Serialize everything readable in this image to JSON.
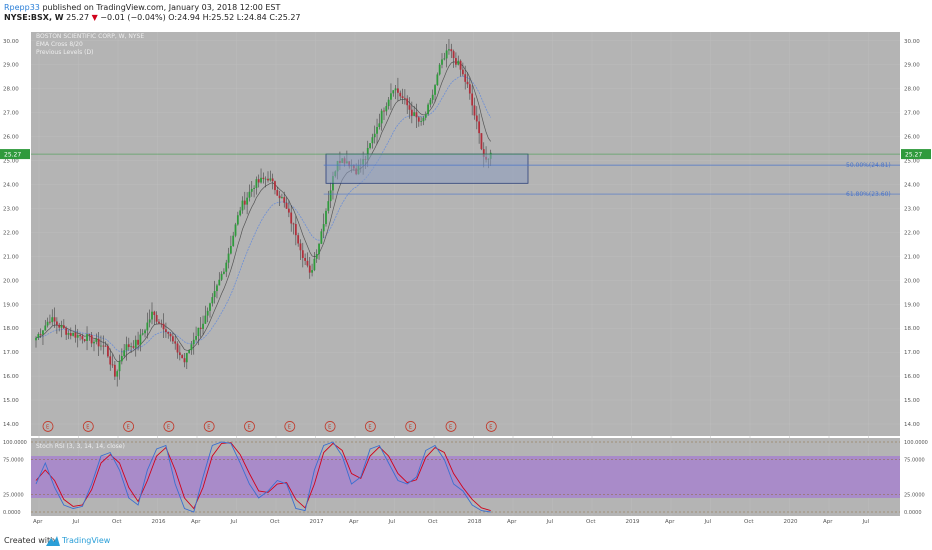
{
  "header": {
    "user": "Rpepp33",
    "published": "published on TradingView.com, January 03, 2018 12:00 EST",
    "symbol": "NYSE:BSX, W",
    "last": "25.27",
    "change_arrow": "▼",
    "change": "−0.01 (−0.04%)",
    "ohlc": "O:24.94 H:25.52 L:24.84 C:25.27"
  },
  "footer": {
    "created_with": "Created with",
    "brand": "TradingView"
  },
  "colors": {
    "plot_bg": "#b4b4b4",
    "up": "#2f9a3c",
    "down": "#b0303c",
    "rsi_band": "#a98bc9",
    "zone": "#8c9cc0",
    "fib": "#4a74c9",
    "price_label": "#2f9a3c"
  },
  "chart_data": {
    "type": "candlestick",
    "title": "BOSTON SCIENTIFIC CORP, W, NYSE",
    "indicators": [
      "EMA Cross 8/20",
      "Previous Levels (D)"
    ],
    "y_ticks": [
      "30.00",
      "29.00",
      "28.00",
      "27.00",
      "26.00",
      "25.00",
      "24.00",
      "23.00",
      "22.00",
      "21.00",
      "20.00",
      "19.00",
      "18.00",
      "17.00",
      "16.00",
      "15.00",
      "14.00"
    ],
    "ylim": [
      13.5,
      30.2
    ],
    "last_price_label": "25.27",
    "x_ticks": [
      "Apr",
      "Jul",
      "Oct",
      "2016",
      "Apr",
      "Jul",
      "Oct",
      "2017",
      "Apr",
      "Jul",
      "Oct",
      "2018",
      "Apr",
      "Jul",
      "Oct",
      "2019",
      "Apr",
      "Jul",
      "Oct",
      "2020",
      "Apr",
      "Jul"
    ],
    "price_path": [
      [
        0,
        17.6
      ],
      [
        6,
        18.4
      ],
      [
        14,
        17.8
      ],
      [
        22,
        17.6
      ],
      [
        30,
        17.2
      ],
      [
        34,
        16.0
      ],
      [
        38,
        17.2
      ],
      [
        44,
        17.4
      ],
      [
        50,
        18.6
      ],
      [
        56,
        18.0
      ],
      [
        60,
        17.2
      ],
      [
        64,
        16.6
      ],
      [
        68,
        17.6
      ],
      [
        74,
        18.6
      ],
      [
        82,
        20.8
      ],
      [
        88,
        23.0
      ],
      [
        94,
        24.0
      ],
      [
        100,
        24.3
      ],
      [
        106,
        23.4
      ],
      [
        112,
        22.0
      ],
      [
        116,
        20.8
      ],
      [
        118,
        20.2
      ],
      [
        122,
        21.6
      ],
      [
        126,
        23.4
      ],
      [
        130,
        25.1
      ],
      [
        134,
        25.0
      ],
      [
        138,
        24.6
      ],
      [
        142,
        25.1
      ],
      [
        146,
        26.2
      ],
      [
        150,
        27.2
      ],
      [
        154,
        28.1
      ],
      [
        158,
        27.6
      ],
      [
        162,
        27.0
      ],
      [
        166,
        26.5
      ],
      [
        170,
        27.4
      ],
      [
        174,
        28.9
      ],
      [
        178,
        29.6
      ],
      [
        182,
        29.0
      ],
      [
        186,
        28.1
      ],
      [
        190,
        26.5
      ],
      [
        193,
        25.2
      ],
      [
        195,
        24.9
      ],
      [
        196,
        25.27
      ]
    ],
    "zone": {
      "low": 24.05,
      "high": 25.27
    },
    "fib_levels": [
      {
        "label": "50.00%(24.81)",
        "value": 24.81
      },
      {
        "label": "61.80%(23.60)",
        "value": 23.6
      }
    ],
    "earnings_marker": "E",
    "earnings_count": 12,
    "rsi": {
      "label": "Stoch RSI (3, 3, 14, 14, close)",
      "y_ticks": [
        "100.0000",
        "75.0000",
        "25.0000",
        "0.0000"
      ],
      "levels": [
        100,
        75,
        25,
        0
      ],
      "band": [
        20,
        80
      ],
      "k": [
        [
          0,
          40
        ],
        [
          4,
          70
        ],
        [
          8,
          35
        ],
        [
          12,
          10
        ],
        [
          16,
          5
        ],
        [
          20,
          8
        ],
        [
          24,
          40
        ],
        [
          28,
          80
        ],
        [
          32,
          85
        ],
        [
          36,
          60
        ],
        [
          40,
          20
        ],
        [
          44,
          10
        ],
        [
          48,
          60
        ],
        [
          52,
          90
        ],
        [
          56,
          95
        ],
        [
          60,
          40
        ],
        [
          64,
          5
        ],
        [
          68,
          0
        ],
        [
          72,
          50
        ],
        [
          76,
          95
        ],
        [
          80,
          100
        ],
        [
          84,
          98
        ],
        [
          88,
          70
        ],
        [
          92,
          40
        ],
        [
          96,
          20
        ],
        [
          100,
          30
        ],
        [
          104,
          45
        ],
        [
          108,
          40
        ],
        [
          112,
          5
        ],
        [
          116,
          2
        ],
        [
          120,
          60
        ],
        [
          124,
          95
        ],
        [
          128,
          100
        ],
        [
          132,
          80
        ],
        [
          136,
          40
        ],
        [
          140,
          50
        ],
        [
          144,
          90
        ],
        [
          148,
          95
        ],
        [
          152,
          70
        ],
        [
          156,
          45
        ],
        [
          160,
          40
        ],
        [
          164,
          50
        ],
        [
          168,
          88
        ],
        [
          172,
          95
        ],
        [
          176,
          75
        ],
        [
          180,
          40
        ],
        [
          184,
          30
        ],
        [
          188,
          10
        ],
        [
          192,
          2
        ],
        [
          196,
          0
        ]
      ],
      "d": [
        [
          0,
          45
        ],
        [
          4,
          60
        ],
        [
          8,
          45
        ],
        [
          12,
          18
        ],
        [
          16,
          8
        ],
        [
          20,
          10
        ],
        [
          24,
          32
        ],
        [
          28,
          70
        ],
        [
          32,
          82
        ],
        [
          36,
          70
        ],
        [
          40,
          35
        ],
        [
          44,
          15
        ],
        [
          48,
          45
        ],
        [
          52,
          80
        ],
        [
          56,
          92
        ],
        [
          60,
          60
        ],
        [
          64,
          20
        ],
        [
          68,
          5
        ],
        [
          72,
          35
        ],
        [
          76,
          80
        ],
        [
          80,
          98
        ],
        [
          84,
          99
        ],
        [
          88,
          82
        ],
        [
          92,
          55
        ],
        [
          96,
          30
        ],
        [
          100,
          28
        ],
        [
          104,
          40
        ],
        [
          108,
          42
        ],
        [
          112,
          18
        ],
        [
          116,
          6
        ],
        [
          120,
          40
        ],
        [
          124,
          85
        ],
        [
          128,
          98
        ],
        [
          132,
          88
        ],
        [
          136,
          55
        ],
        [
          140,
          48
        ],
        [
          144,
          80
        ],
        [
          148,
          93
        ],
        [
          152,
          80
        ],
        [
          156,
          55
        ],
        [
          160,
          42
        ],
        [
          164,
          46
        ],
        [
          168,
          78
        ],
        [
          172,
          92
        ],
        [
          176,
          85
        ],
        [
          180,
          55
        ],
        [
          184,
          35
        ],
        [
          188,
          18
        ],
        [
          192,
          6
        ],
        [
          196,
          2
        ]
      ]
    }
  }
}
